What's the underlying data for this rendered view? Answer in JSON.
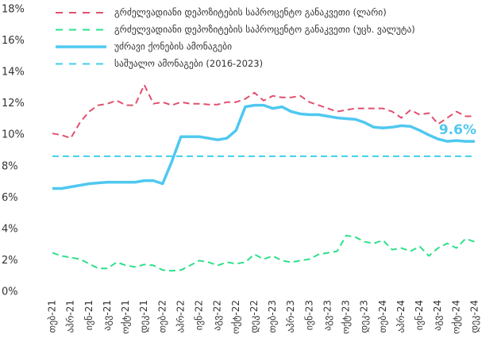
{
  "chart_data": {
    "type": "line",
    "categories": [
      "თებ-21",
      null,
      "აპრ-21",
      null,
      "ივნ-21",
      null,
      "აგვ-21",
      null,
      "ოქტ-21",
      null,
      "დეკ-21",
      null,
      "თებ-22",
      null,
      "აპრ-22",
      null,
      "ივნ-22",
      null,
      "აგვ-22",
      null,
      "ოქტ-22",
      null,
      "დეკ-22",
      null,
      "თებ-23",
      null,
      "აპრ-23",
      null,
      "ივნ-23",
      null,
      "აგვ-23",
      null,
      "ოქტ-23",
      null,
      "დეკ-23",
      null,
      "თებ-24",
      null,
      "აპრ-24",
      null,
      "ივნ-24",
      null,
      "აგვ-24",
      null,
      "ოქტ-24",
      null,
      "დეკ-24"
    ],
    "series": [
      {
        "name": "გრძელვადიანი დეპოზიტების საპროცენტო განაკვეთი (ლარი)",
        "color": "#e0506e",
        "style": "dashed",
        "values": [
          10.1,
          10.0,
          9.8,
          10.8,
          11.5,
          11.9,
          12.0,
          12.2,
          11.9,
          11.9,
          13.2,
          12.0,
          12.1,
          11.9,
          12.1,
          12.0,
          12.0,
          11.95,
          11.95,
          12.1,
          12.1,
          12.3,
          12.7,
          12.2,
          12.5,
          12.4,
          12.4,
          12.5,
          12.1,
          11.9,
          11.7,
          11.5,
          11.6,
          11.7,
          11.7,
          11.7,
          11.7,
          11.5,
          11.1,
          11.6,
          11.3,
          11.4,
          10.7,
          11.1,
          11.5,
          11.2,
          11.2
        ]
      },
      {
        "name": "გრძელვადიანი დეპოზიტების საპროცენტო განაკვეთი (უცხ. ვალუტა)",
        "color": "#2ee08a",
        "style": "dashed",
        "values": [
          2.5,
          2.3,
          2.2,
          2.1,
          1.8,
          1.5,
          1.5,
          1.9,
          1.7,
          1.6,
          1.75,
          1.7,
          1.4,
          1.35,
          1.4,
          1.7,
          2.0,
          1.9,
          1.7,
          1.9,
          1.8,
          1.9,
          2.4,
          2.1,
          2.3,
          2.0,
          1.9,
          2.0,
          2.1,
          2.4,
          2.5,
          2.6,
          3.6,
          3.5,
          3.2,
          3.1,
          3.3,
          2.7,
          2.8,
          2.6,
          2.9,
          2.3,
          2.8,
          3.1,
          2.8,
          3.4,
          3.2
        ]
      },
      {
        "name": "უძრავი ქონების ამონაგები",
        "color": "#4fc8f0",
        "style": "solid",
        "values": [
          6.6,
          6.6,
          6.7,
          6.8,
          6.9,
          6.95,
          7.0,
          7.0,
          7.0,
          7.0,
          7.1,
          7.1,
          6.9,
          8.3,
          9.9,
          9.9,
          9.9,
          9.8,
          9.7,
          9.8,
          10.3,
          11.8,
          11.9,
          11.9,
          11.7,
          11.8,
          11.5,
          11.35,
          11.3,
          11.3,
          11.2,
          11.1,
          11.05,
          11.0,
          10.8,
          10.5,
          10.45,
          10.5,
          10.6,
          10.55,
          10.3,
          10.0,
          9.75,
          9.6,
          9.65,
          9.6,
          9.6
        ],
        "value_labels": [
          null,
          null,
          null,
          null,
          null,
          null,
          null,
          null,
          null,
          null,
          null,
          null,
          null,
          null,
          null,
          null,
          null,
          null,
          null,
          null,
          null,
          null,
          null,
          null,
          null,
          null,
          null,
          null,
          null,
          null,
          null,
          null,
          null,
          null,
          null,
          null,
          null,
          null,
          null,
          null,
          null,
          null,
          null,
          null,
          null,
          null,
          "9.6%"
        ]
      }
    ],
    "hline": {
      "name": "საშუალო ამონაგები (2016-2023)",
      "color": "#3fd0e8",
      "value": 8.65
    },
    "ylim": [
      0,
      18
    ],
    "yticks": [
      {
        "value": 0,
        "label": "0%"
      },
      {
        "value": 2,
        "label": "2%"
      },
      {
        "value": 4,
        "label": "4%"
      },
      {
        "value": 6,
        "label": "6%"
      },
      {
        "value": 8,
        "label": "8%"
      },
      {
        "value": 10,
        "label": "10%"
      },
      {
        "value": 12,
        "label": "12%"
      },
      {
        "value": 14,
        "label": "14%"
      },
      {
        "value": 16,
        "label": "16%"
      },
      {
        "value": 18,
        "label": "18%"
      }
    ],
    "grid": false,
    "legend": "top-left"
  }
}
